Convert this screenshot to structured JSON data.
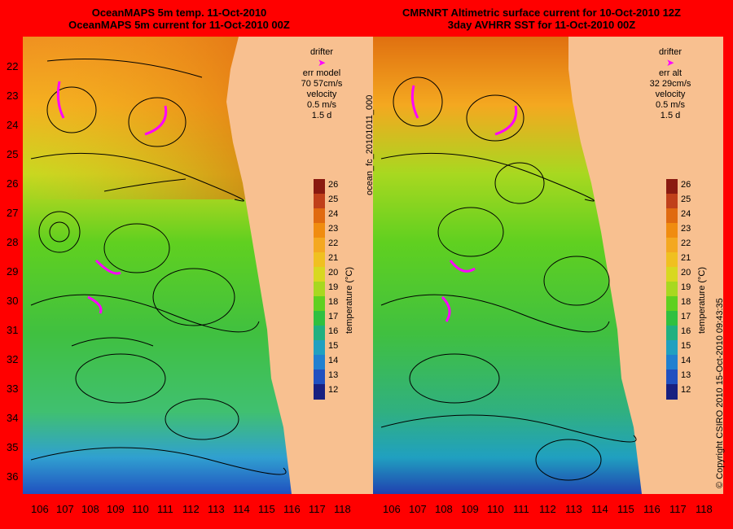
{
  "left_panel": {
    "title_line1": "OceanMAPS 5m temp. 11-Oct-2010",
    "title_line2": "OceanMAPS 5m current for 11-Oct-2010 00Z",
    "legend": {
      "drifter": "drifter",
      "err_label": "err model",
      "err_value": "70 57cm/s",
      "velocity": "velocity",
      "speed": "0.5 m/s",
      "duration": "1.5 d"
    }
  },
  "right_panel": {
    "title_line1": "CMRNRT Altimetric surface current for 10-Oct-2010 12Z",
    "title_line2": "3day AVHRR SST for 11-Oct-2010 00Z",
    "legend": {
      "drifter": "drifter",
      "err_label": "err alt",
      "err_value": "32 29cm/s",
      "velocity": "velocity",
      "speed": "0.5 m/s",
      "duration": "1.5 d"
    }
  },
  "latitudes": [
    "22",
    "23",
    "24",
    "25",
    "26",
    "27",
    "28",
    "29",
    "30",
    "31",
    "32",
    "33",
    "34",
    "35",
    "36"
  ],
  "longitudes": [
    "106",
    "107",
    "108",
    "109",
    "110",
    "111",
    "112",
    "113",
    "114",
    "115",
    "116",
    "117",
    "118"
  ],
  "colorbar": {
    "ticks": [
      "26",
      "25",
      "24",
      "23",
      "22",
      "21",
      "20",
      "19",
      "18",
      "17",
      "16",
      "15",
      "14",
      "13",
      "12"
    ],
    "label": "temperature (°C)",
    "colors": [
      "#8a1a10",
      "#c0401a",
      "#e06a10",
      "#f08c10",
      "#f4a820",
      "#f0c020",
      "#d8d820",
      "#a8d820",
      "#60d020",
      "#30c040",
      "#20b080",
      "#20a0c0",
      "#2080d0",
      "#2050c0",
      "#182080"
    ]
  },
  "file_label": "ocean_fc_20101011_000",
  "copyright": "© Copyright CSIRO 2010   15-Oct-2010 09:43:35",
  "colors": {
    "background": "#ff0000",
    "land": "#f8c090",
    "drifter": "#ff00ff"
  }
}
